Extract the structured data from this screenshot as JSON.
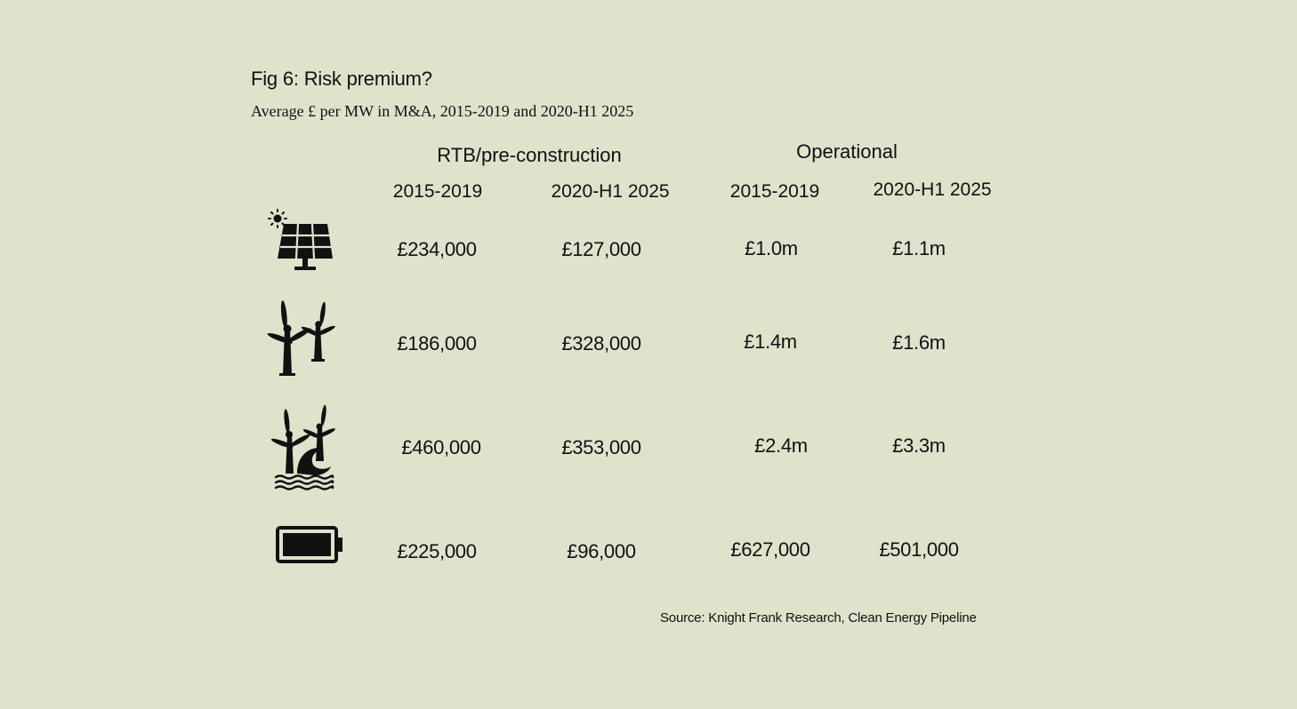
{
  "title": "Fig 6: Risk premium?",
  "subtitle": "Average £ per MW in M&A, 2015-2019 and 2020-H1 2025",
  "source": "Source: Knight Frank Research, Clean Energy Pipeline",
  "chart_data": {
    "type": "table",
    "column_groups": [
      {
        "label": "RTB/pre-construction",
        "columns": [
          "2015-2019",
          "2020-H1 2025"
        ]
      },
      {
        "label": "Operational",
        "columns": [
          "2015-2019",
          "2020-H1 2025"
        ]
      }
    ],
    "rows": [
      {
        "icon": "solar-panel-icon",
        "values": [
          "£234,000",
          "£127,000",
          "£1.0m",
          "£1.1m"
        ]
      },
      {
        "icon": "onshore-wind-turbine-icon",
        "values": [
          "£186,000",
          "£328,000",
          "£1.4m",
          "£1.6m"
        ]
      },
      {
        "icon": "offshore-wind-turbine-icon",
        "values": [
          "£460,000",
          "£353,000",
          "£2.4m",
          "£3.3m"
        ]
      },
      {
        "icon": "battery-icon",
        "values": [
          "£225,000",
          "£96,000",
          "£627,000",
          "£501,000"
        ]
      }
    ]
  }
}
